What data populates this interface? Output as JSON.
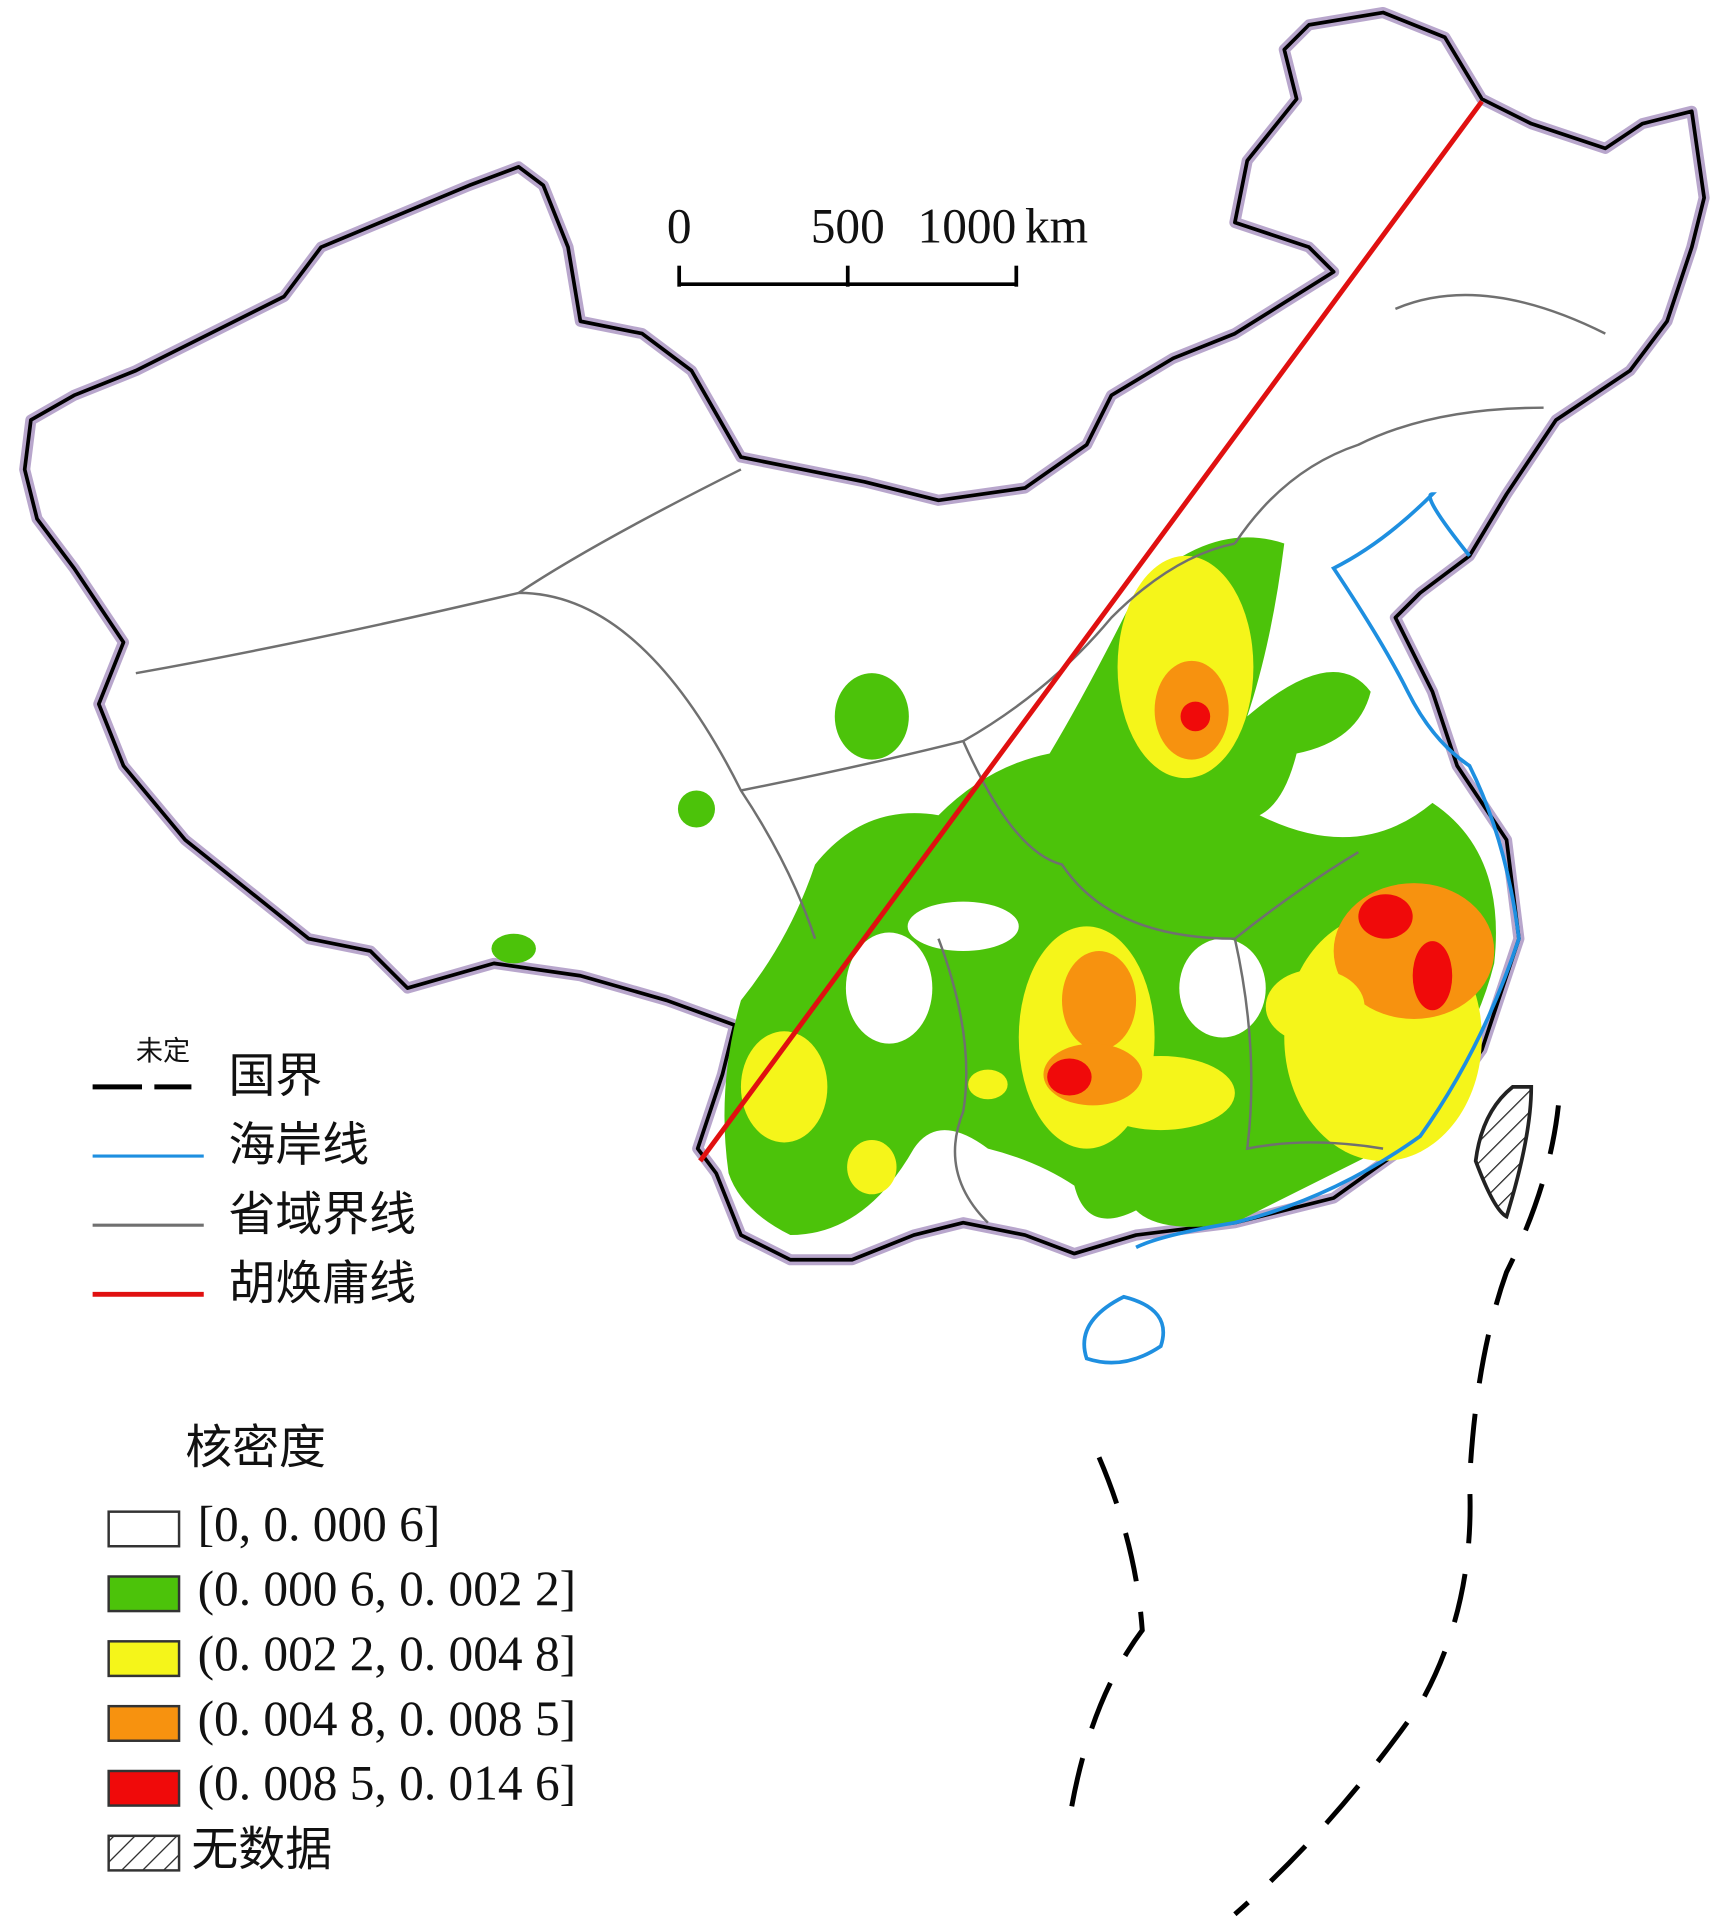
{
  "scale_bar": {
    "ticks": [
      0,
      500,
      1000
    ],
    "unit": "km"
  },
  "line_legend": [
    {
      "label": "国界",
      "note": "未定",
      "color": "#000000"
    },
    {
      "label": "海岸线",
      "color": "#1e8fe0"
    },
    {
      "label": "省域界线",
      "color": "#707070"
    },
    {
      "label": "胡焕庸线",
      "color": "#e01010"
    }
  ],
  "density_legend": {
    "title": "核密度",
    "classes": [
      {
        "label": "[0, 0. 000 6]",
        "color": "#ffffff"
      },
      {
        "label": "(0. 000 6, 0. 002 2]",
        "color": "#4cc30a"
      },
      {
        "label": "(0. 002 2, 0. 004 8]",
        "color": "#f5f51a"
      },
      {
        "label": "(0. 004 8, 0. 008 5]",
        "color": "#f7920f"
      },
      {
        "label": "(0. 008 5, 0. 014 6]",
        "color": "#f00a0a"
      }
    ],
    "no_data": "无数据"
  }
}
